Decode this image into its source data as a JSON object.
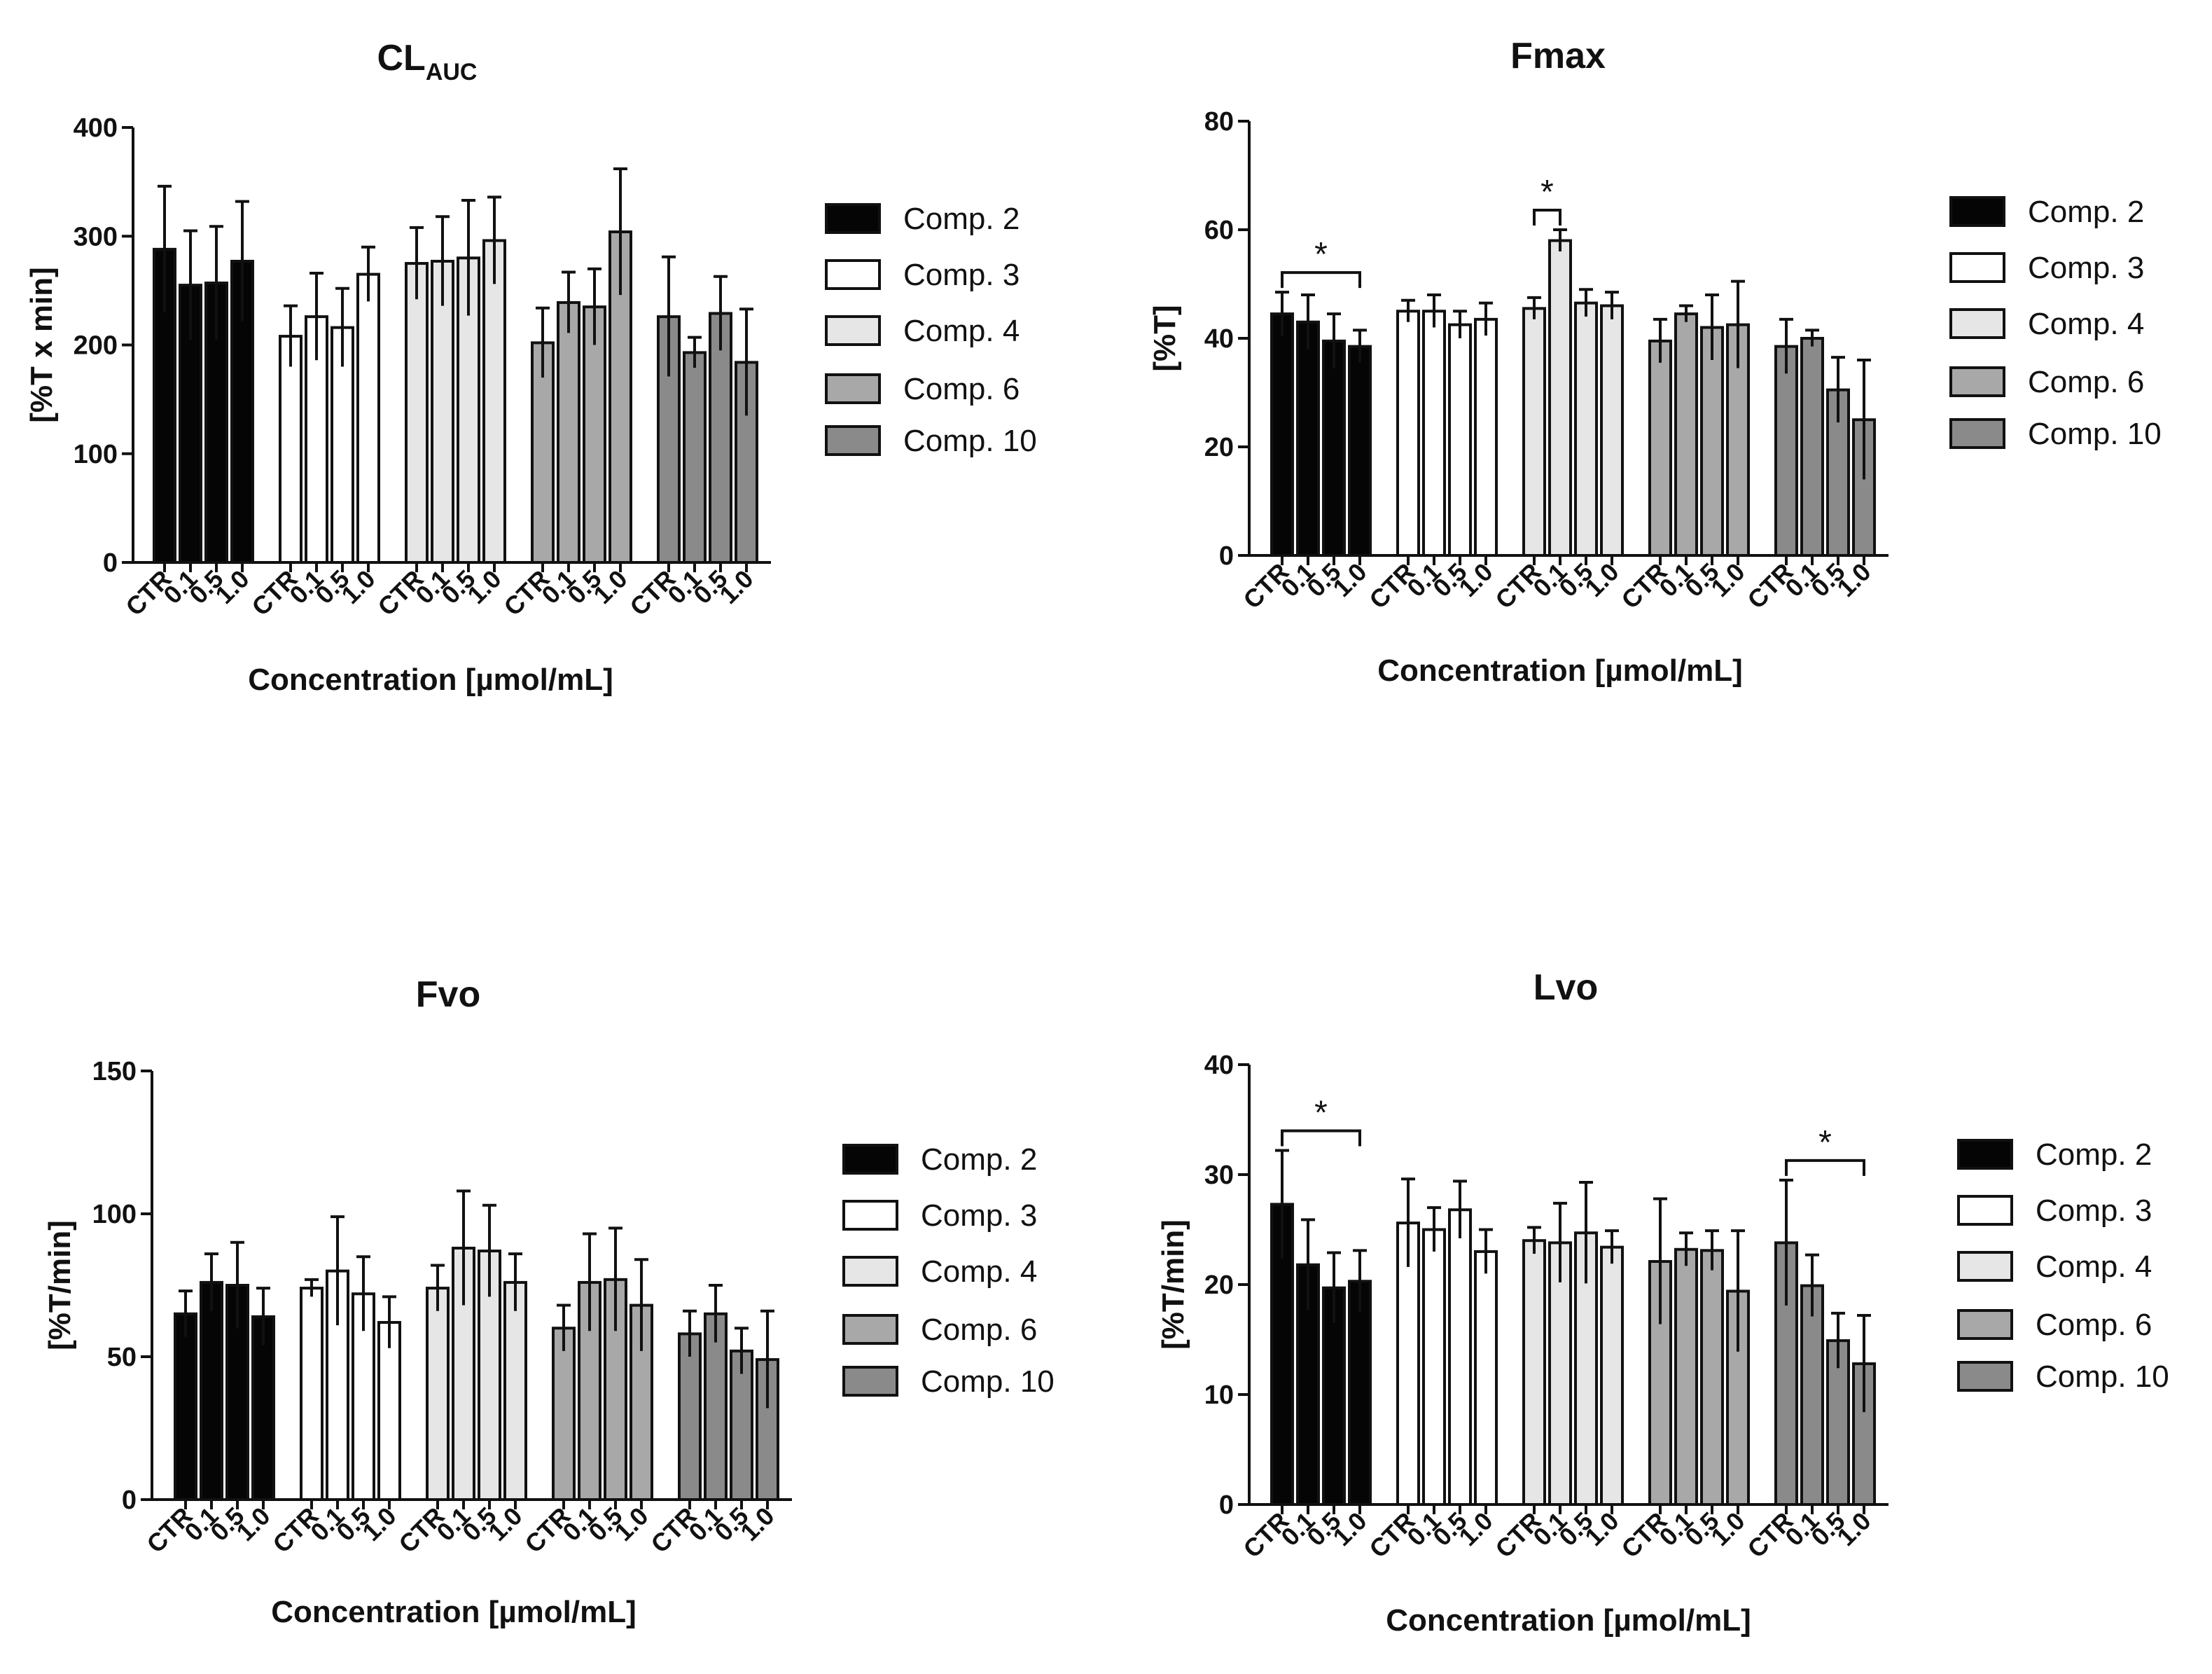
{
  "colors": {
    "Comp. 2": "#050505",
    "Comp. 3": "#ffffff",
    "Comp. 4": "#e6e6e6",
    "Comp. 6": "#a8a8a8",
    "Comp. 10": "#8a8a8a"
  },
  "chart_data": [
    {
      "type": "bar",
      "title_main": "CL",
      "title_sub": "AUC",
      "xlabel": "Concentration [µmol/mL]",
      "ylabel": "[%T x min]",
      "ylim": [
        0,
        400
      ],
      "yticks": [
        "0",
        "100",
        "200",
        "300",
        "400"
      ],
      "categories": [
        "CTR",
        "0.1",
        "0.5",
        "1.0"
      ],
      "legend": [
        "Comp. 2",
        "Comp. 3",
        "Comp. 4",
        "Comp. 6",
        "Comp. 10"
      ],
      "series": [
        {
          "name": "Comp. 2",
          "values": [
            288,
            255,
            257,
            277
          ],
          "errors": [
            58,
            50,
            52,
            55
          ]
        },
        {
          "name": "Comp. 3",
          "values": [
            208,
            226,
            216,
            265
          ],
          "errors": [
            28,
            40,
            36,
            25
          ]
        },
        {
          "name": "Comp. 4",
          "values": [
            275,
            277,
            280,
            296
          ],
          "errors": [
            33,
            41,
            53,
            40
          ]
        },
        {
          "name": "Comp. 6",
          "values": [
            202,
            239,
            235,
            304
          ],
          "errors": [
            32,
            28,
            35,
            58
          ]
        },
        {
          "name": "Comp. 10",
          "values": [
            226,
            193,
            229,
            184
          ],
          "errors": [
            55,
            14,
            34,
            49
          ]
        }
      ],
      "significance": []
    },
    {
      "type": "bar",
      "title_main": "Fmax",
      "title_sub": "",
      "xlabel": "Concentration [µmol/mL]",
      "ylabel": "[%T]",
      "ylim": [
        0,
        80
      ],
      "yticks": [
        "0",
        "20",
        "40",
        "60",
        "80"
      ],
      "categories": [
        "CTR",
        "0.1",
        "0.5",
        "1.0"
      ],
      "legend": [
        "Comp. 2",
        "Comp. 3",
        "Comp. 4",
        "Comp. 6",
        "Comp. 10"
      ],
      "series": [
        {
          "name": "Comp. 2",
          "values": [
            44.5,
            43,
            39.5,
            38.5
          ],
          "errors": [
            4,
            5,
            5,
            3
          ]
        },
        {
          "name": "Comp. 3",
          "values": [
            45,
            45,
            42.5,
            43.5
          ],
          "errors": [
            2,
            3,
            2.5,
            3
          ]
        },
        {
          "name": "Comp. 4",
          "values": [
            45.5,
            58,
            46.5,
            46
          ],
          "errors": [
            2,
            2,
            2.5,
            2.5
          ]
        },
        {
          "name": "Comp. 6",
          "values": [
            39.5,
            44.5,
            42,
            42.5
          ],
          "errors": [
            4,
            1.5,
            6,
            8
          ]
        },
        {
          "name": "Comp. 10",
          "values": [
            38.5,
            40,
            30.5,
            25
          ],
          "errors": [
            5,
            1.5,
            6,
            11
          ]
        }
      ],
      "significance": [
        {
          "group": 0,
          "from": 0,
          "to": 3,
          "label": "*"
        },
        {
          "group": 2,
          "from": 0,
          "to": 1,
          "label": "*"
        }
      ]
    },
    {
      "type": "bar",
      "title_main": "Fvo",
      "title_sub": "",
      "xlabel": "Concentration [µmol/mL]",
      "ylabel": "[%T/min]",
      "ylim": [
        0,
        150
      ],
      "yticks": [
        "0",
        "50",
        "100",
        "150"
      ],
      "categories": [
        "CTR",
        "0.1",
        "0.5",
        "1.0"
      ],
      "legend": [
        "Comp. 2",
        "Comp. 3",
        "Comp. 4",
        "Comp. 6",
        "Comp. 10"
      ],
      "series": [
        {
          "name": "Comp. 2",
          "values": [
            65,
            76,
            75,
            64
          ],
          "errors": [
            8,
            10,
            15,
            10
          ]
        },
        {
          "name": "Comp. 3",
          "values": [
            74,
            80,
            72,
            62
          ],
          "errors": [
            3,
            19,
            13,
            9
          ]
        },
        {
          "name": "Comp. 4",
          "values": [
            74,
            88,
            87,
            76
          ],
          "errors": [
            8,
            20,
            16,
            10
          ]
        },
        {
          "name": "Comp. 6",
          "values": [
            60,
            76,
            77,
            68
          ],
          "errors": [
            8,
            17,
            18,
            16
          ]
        },
        {
          "name": "Comp. 10",
          "values": [
            58,
            65,
            52,
            49
          ],
          "errors": [
            8,
            10,
            8,
            17
          ]
        }
      ],
      "significance": []
    },
    {
      "type": "bar",
      "title_main": "Lvo",
      "title_sub": "",
      "xlabel": "Concentration [µmol/mL]",
      "ylabel": "[%T/min]",
      "ylim": [
        0,
        40
      ],
      "yticks": [
        "0",
        "10",
        "20",
        "30",
        "40"
      ],
      "categories": [
        "CTR",
        "0.1",
        "0.5",
        "1.0"
      ],
      "legend": [
        "Comp. 2",
        "Comp. 3",
        "Comp. 4",
        "Comp. 6",
        "Comp. 10"
      ],
      "series": [
        {
          "name": "Comp. 2",
          "values": [
            27.3,
            21.8,
            19.7,
            20.3
          ],
          "errors": [
            4.9,
            4.1,
            3.2,
            2.8
          ]
        },
        {
          "name": "Comp. 3",
          "values": [
            25.6,
            25,
            26.8,
            23
          ],
          "errors": [
            4,
            2,
            2.6,
            2
          ]
        },
        {
          "name": "Comp. 4",
          "values": [
            24,
            23.8,
            24.7,
            23.4
          ],
          "errors": [
            1.2,
            3.6,
            4.6,
            1.5
          ]
        },
        {
          "name": "Comp. 6",
          "values": [
            22.1,
            23.2,
            23.1,
            19.4
          ],
          "errors": [
            5.7,
            1.5,
            1.8,
            5.5
          ]
        },
        {
          "name": "Comp. 10",
          "values": [
            23.8,
            19.9,
            14.9,
            12.8
          ],
          "errors": [
            5.7,
            2.8,
            2.5,
            4.4
          ]
        }
      ],
      "significance": [
        {
          "group": 0,
          "from": 0,
          "to": 3,
          "label": "*"
        },
        {
          "group": 4,
          "from": 0,
          "to": 3,
          "label": "*"
        }
      ]
    }
  ]
}
